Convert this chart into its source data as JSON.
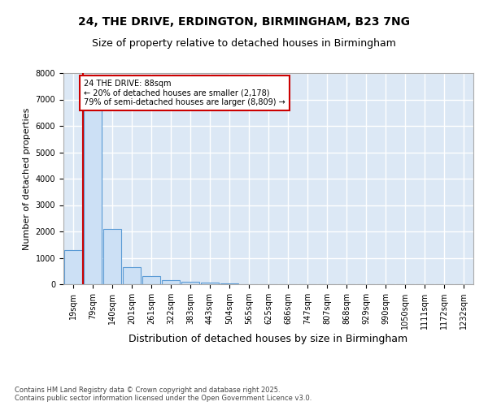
{
  "title_line1": "24, THE DRIVE, ERDINGTON, BIRMINGHAM, B23 7NG",
  "title_line2": "Size of property relative to detached houses in Birmingham",
  "xlabel": "Distribution of detached houses by size in Birmingham",
  "ylabel": "Number of detached properties",
  "footer": "Contains HM Land Registry data © Crown copyright and database right 2025.\nContains public sector information licensed under the Open Government Licence v3.0.",
  "bin_labels": [
    "19sqm",
    "79sqm",
    "140sqm",
    "201sqm",
    "261sqm",
    "322sqm",
    "383sqm",
    "443sqm",
    "504sqm",
    "565sqm",
    "625sqm",
    "686sqm",
    "747sqm",
    "807sqm",
    "868sqm",
    "929sqm",
    "990sqm",
    "1050sqm",
    "1111sqm",
    "1172sqm",
    "1232sqm"
  ],
  "bar_values": [
    1300,
    6650,
    2100,
    650,
    300,
    140,
    100,
    60,
    25,
    0,
    0,
    0,
    0,
    0,
    0,
    0,
    0,
    0,
    0,
    0,
    0
  ],
  "bar_color": "#cce0f5",
  "bar_edge_color": "#5b9bd5",
  "annotation_line1": "24 THE DRIVE: 88sqm",
  "annotation_line2": "← 20% of detached houses are smaller (2,178)",
  "annotation_line3": "79% of semi-detached houses are larger (8,809) →",
  "red_line_color": "#cc0000",
  "annotation_box_color": "#cc0000",
  "background_color": "#dce8f5",
  "grid_color": "#ffffff",
  "ylim": [
    0,
    8000
  ],
  "yticks": [
    0,
    1000,
    2000,
    3000,
    4000,
    5000,
    6000,
    7000,
    8000
  ],
  "title1_fontsize": 10,
  "title2_fontsize": 9,
  "ylabel_fontsize": 8,
  "xlabel_fontsize": 9,
  "tick_fontsize": 7,
  "footer_fontsize": 6
}
